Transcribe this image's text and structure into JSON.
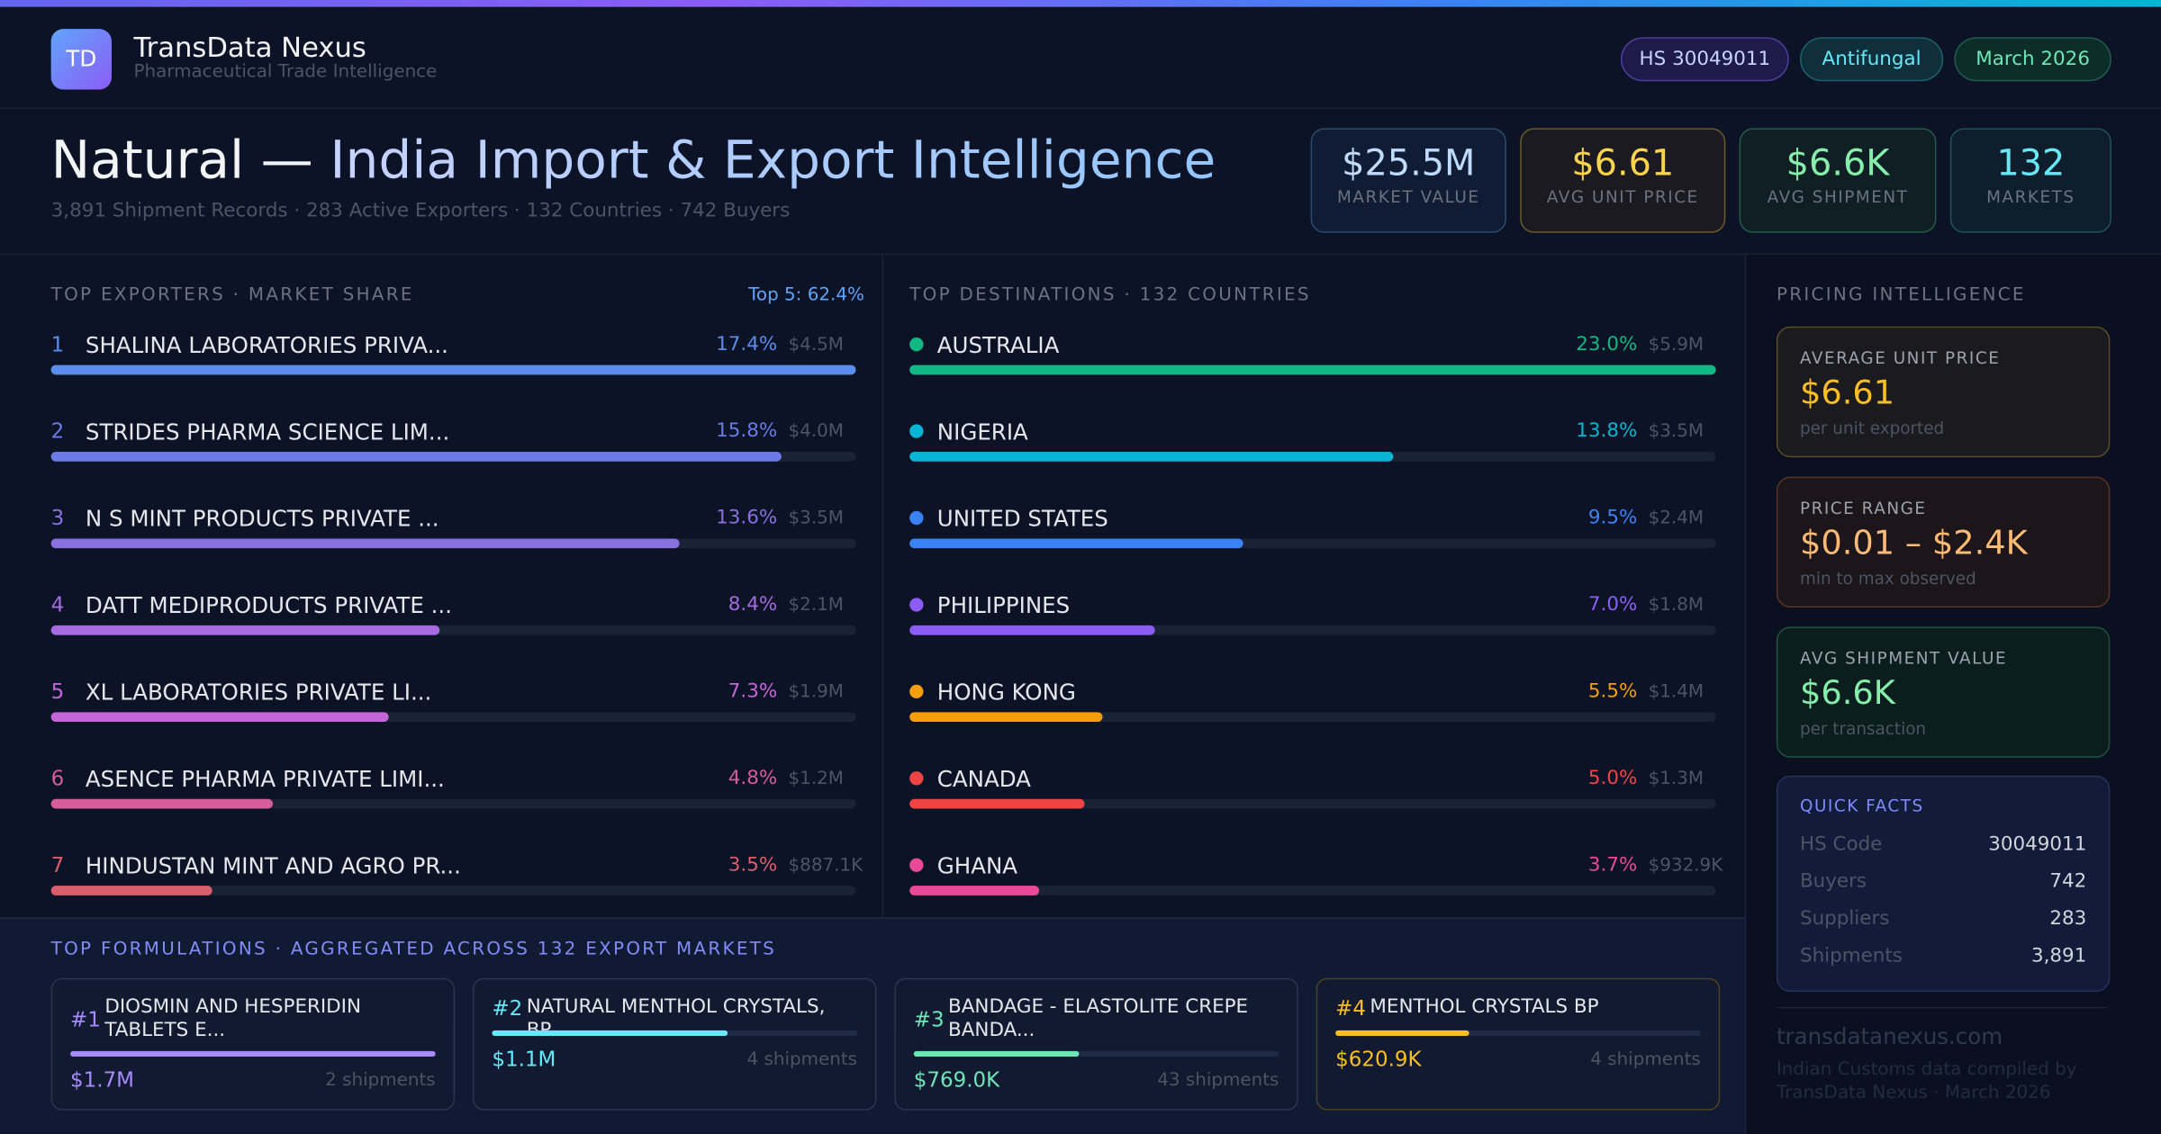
{
  "header": {
    "logo": "TD",
    "brand": "TransData Nexus",
    "tagline": "Pharmaceutical Trade Intelligence",
    "pills": [
      "HS 30049011",
      "Antifungal",
      "March 2026"
    ]
  },
  "hero": {
    "title_lead": "Natural —",
    "title_main": "India Import & Export Intelligence",
    "subtitle": "3,891 Shipment Records · 283 Active Exporters · 132 Countries · 742 Buyers",
    "kpis": [
      {
        "value": "$25.5M",
        "label": "MARKET VALUE"
      },
      {
        "value": "$6.61",
        "label": "AVG UNIT PRICE"
      },
      {
        "value": "$6.6K",
        "label": "AVG SHIPMENT"
      },
      {
        "value": "132",
        "label": "MARKETS"
      }
    ]
  },
  "exporters": {
    "heading": "TOP EXPORTERS · MARKET SHARE",
    "badge": "Top 5: 62.4%",
    "rows": [
      {
        "rank": "1",
        "name": "SHALINA LABORATORIES PRIVA...",
        "share": {
          "value": 17.4,
          "label": "17.4%"
        },
        "amount": "$4.5M"
      },
      {
        "rank": "2",
        "name": "STRIDES PHARMA SCIENCE LIM...",
        "share": {
          "value": 15.8,
          "label": "15.8%"
        },
        "amount": "$4.0M"
      },
      {
        "rank": "3",
        "name": "N S MINT PRODUCTS PRIVATE ...",
        "share": {
          "value": 13.6,
          "label": "13.6%"
        },
        "amount": "$3.5M"
      },
      {
        "rank": "4",
        "name": "DATT MEDIPRODUCTS PRIVATE ...",
        "share": {
          "value": 8.4,
          "label": "8.4%"
        },
        "amount": "$2.1M"
      },
      {
        "rank": "5",
        "name": "XL LABORATORIES PRIVATE LI...",
        "share": {
          "value": 7.3,
          "label": "7.3%"
        },
        "amount": "$1.9M"
      },
      {
        "rank": "6",
        "name": "ASENCE PHARMA PRIVATE LIMI...",
        "share": {
          "value": 4.8,
          "label": "4.8%"
        },
        "amount": "$1.2M"
      },
      {
        "rank": "7",
        "name": "HINDUSTAN MINT AND AGRO PR...",
        "share": {
          "value": 3.5,
          "label": "3.5%"
        },
        "amount": "$887.1K"
      }
    ]
  },
  "destinations": {
    "heading": "TOP DESTINATIONS · 132 COUNTRIES",
    "rows": [
      {
        "name": "AUSTRALIA",
        "share": {
          "value": 23.0,
          "label": "23.0%"
        },
        "amount": "$5.9M"
      },
      {
        "name": "NIGERIA",
        "share": {
          "value": 13.8,
          "label": "13.8%"
        },
        "amount": "$3.5M"
      },
      {
        "name": "UNITED STATES",
        "share": {
          "value": 9.5,
          "label": "9.5%"
        },
        "amount": "$2.4M"
      },
      {
        "name": "PHILIPPINES",
        "share": {
          "value": 7.0,
          "label": "7.0%"
        },
        "amount": "$1.8M"
      },
      {
        "name": "HONG KONG",
        "share": {
          "value": 5.5,
          "label": "5.5%"
        },
        "amount": "$1.4M"
      },
      {
        "name": "CANADA",
        "share": {
          "value": 5.0,
          "label": "5.0%"
        },
        "amount": "$1.3M"
      },
      {
        "name": "GHANA",
        "share": {
          "value": 3.7,
          "label": "3.7%"
        },
        "amount": "$932.9K"
      }
    ]
  },
  "formulations": {
    "heading": "TOP FORMULATIONS · AGGREGATED ACROSS 132 EXPORT MARKETS",
    "cards": [
      {
        "rank": "#1",
        "name": "DIOSMIN AND HESPERIDIN TABLETS E...",
        "value": {
          "value": 1700000,
          "label": "$1.7M"
        },
        "shipments": "2 shipments"
      },
      {
        "rank": "#2",
        "name": "NATURAL MENTHOL CRYSTALS, BP",
        "value": {
          "value": 1100000,
          "label": "$1.1M"
        },
        "shipments": "4 shipments"
      },
      {
        "rank": "#3",
        "name": "BANDAGE - ELASTOLITE CREPE BANDA...",
        "value": {
          "value": 769000,
          "label": "$769.0K"
        },
        "shipments": "43 shipments"
      },
      {
        "rank": "#4",
        "name": "MENTHOL CRYSTALS BP",
        "value": {
          "value": 620900,
          "label": "$620.9K"
        },
        "shipments": "4 shipments"
      }
    ]
  },
  "pricing": {
    "heading": "PRICING INTELLIGENCE",
    "cards": [
      {
        "label": "AVERAGE UNIT PRICE",
        "value": "$6.61",
        "note": "per unit exported"
      },
      {
        "label": "PRICE RANGE",
        "value": "$0.01 – $2.4K",
        "note": "min to max observed"
      },
      {
        "label": "AVG SHIPMENT VALUE",
        "value": "$6.6K",
        "note": "per transaction"
      }
    ],
    "facts_heading": "QUICK FACTS",
    "facts": [
      [
        "HS Code",
        "30049011"
      ],
      [
        "Buyers",
        "742"
      ],
      [
        "Suppliers",
        "283"
      ],
      [
        "Shipments",
        "3,891"
      ]
    ]
  },
  "footer": {
    "site": "transdatanexus.com",
    "note": "Indian Customs data compiled by TransData Nexus · March 2026"
  }
}
